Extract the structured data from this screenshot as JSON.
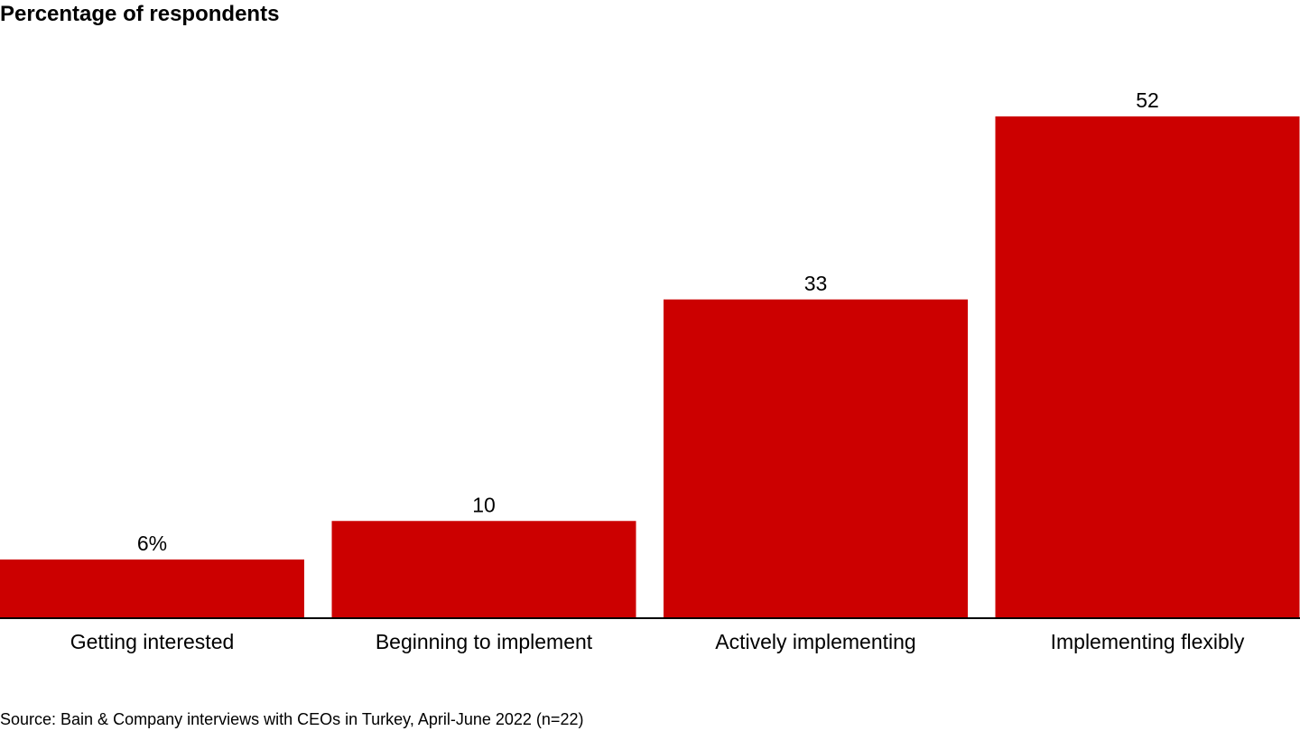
{
  "chart_data": {
    "type": "bar",
    "title": "Percentage of respondents",
    "categories": [
      "Getting interested",
      "Beginning to implement",
      "Actively implementing",
      "Implementing flexibly"
    ],
    "values": [
      6,
      10,
      33,
      52
    ],
    "value_labels": [
      "6%",
      "10",
      "33",
      "52"
    ],
    "xlabel": "",
    "ylabel": "",
    "ylim": [
      0,
      52
    ],
    "grid": false,
    "legend": "none",
    "colors": {
      "bar": "#cc0000",
      "axis": "#000000"
    }
  },
  "source": "Source: Bain & Company interviews with CEOs in Turkey, April-June 2022 (n=22)"
}
